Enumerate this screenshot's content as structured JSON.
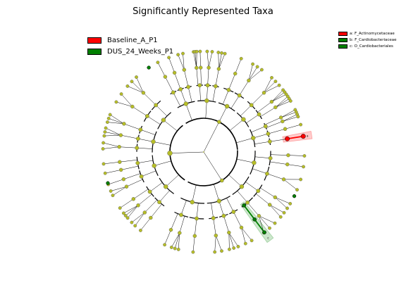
{
  "chart_data": {
    "type": "cladogram",
    "title": "Significantly Represented Taxa",
    "classes": [
      {
        "name": "Baseline_A_P1",
        "color": "#ff0000"
      },
      {
        "name": "DUS_24_Weeks_P1",
        "color": "#008000"
      }
    ],
    "clades": [
      {
        "letter": "a",
        "label": "a: F_Actinomycetaceae",
        "color": "#ff0000"
      },
      {
        "letter": "b",
        "label": "b: F_Cardiobacteriaceae",
        "color": "#008000"
      },
      {
        "letter": "c",
        "label": "c: O_Cardiobacteriales",
        "color": "#008000"
      }
    ],
    "node_color": "#b6bd28",
    "ring_labels": [
      "a",
      "b",
      "c"
    ]
  }
}
